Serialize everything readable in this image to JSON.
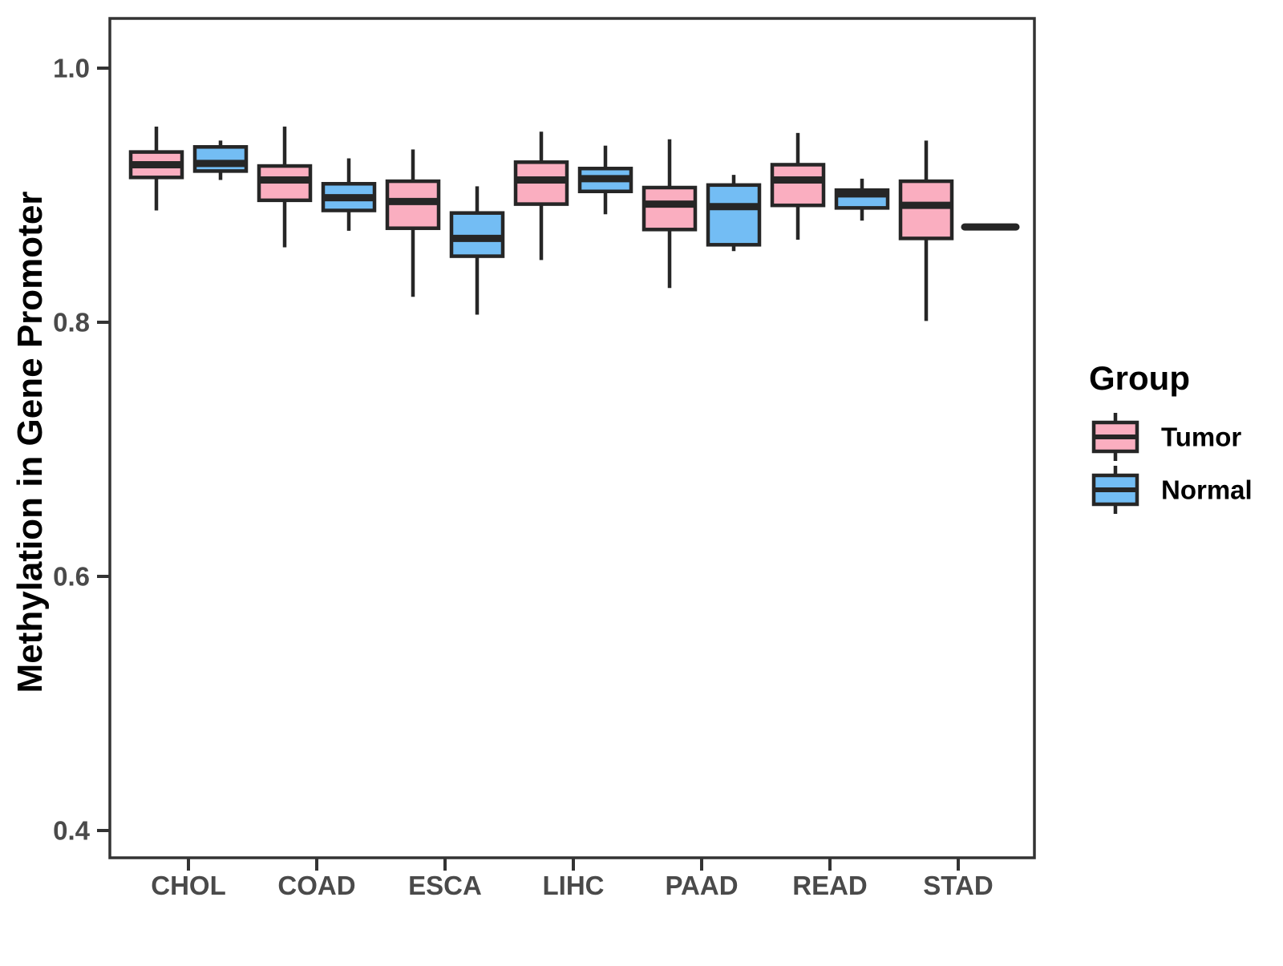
{
  "figure": {
    "background": "#FFFFFF"
  },
  "chart_data": {
    "type": "boxplot",
    "title": "",
    "xlabel": "",
    "ylabel": "Methylation in Gene Promoter",
    "categories": [
      "CHOL",
      "COAD",
      "ESCA",
      "LIHC",
      "PAAD",
      "READ",
      "STAD"
    ],
    "ytick_labels": [
      "1.0",
      "0.8",
      "0.6",
      "0.4"
    ],
    "ytick_values": [
      1.0,
      0.8,
      0.6,
      0.4
    ],
    "ylim": [
      0.379,
      1.039
    ],
    "grid": false,
    "legend": {
      "title": "Group",
      "position": "right",
      "entries": [
        {
          "label": "Tumor",
          "color": "#FAAEC0"
        },
        {
          "label": "Normal",
          "color": "#73BDF4"
        }
      ]
    },
    "style": {
      "box_border": "#262626",
      "panel_border": "#333333",
      "tick_label_color": "#4A4A4A",
      "axis_title_color": "#000000",
      "tumor_fill": "#FAAEC0",
      "normal_fill": "#73BDF4"
    },
    "series": [
      {
        "name": "Tumor",
        "color": "#FAAEC0",
        "boxes": [
          {
            "category": "CHOL",
            "min": 0.888,
            "q1": 0.914,
            "median": 0.924,
            "q3": 0.934,
            "max": 0.954
          },
          {
            "category": "COAD",
            "min": 0.859,
            "q1": 0.896,
            "median": 0.912,
            "q3": 0.923,
            "max": 0.954
          },
          {
            "category": "ESCA",
            "min": 0.82,
            "q1": 0.874,
            "median": 0.895,
            "q3": 0.911,
            "max": 0.936
          },
          {
            "category": "LIHC",
            "min": 0.849,
            "q1": 0.893,
            "median": 0.912,
            "q3": 0.926,
            "max": 0.95
          },
          {
            "category": "PAAD",
            "min": 0.827,
            "q1": 0.873,
            "median": 0.893,
            "q3": 0.906,
            "max": 0.944
          },
          {
            "category": "READ",
            "min": 0.865,
            "q1": 0.892,
            "median": 0.912,
            "q3": 0.924,
            "max": 0.949
          },
          {
            "category": "STAD",
            "min": 0.801,
            "q1": 0.866,
            "median": 0.892,
            "q3": 0.911,
            "max": 0.943
          }
        ]
      },
      {
        "name": "Normal",
        "color": "#73BDF4",
        "boxes": [
          {
            "category": "CHOL",
            "min": 0.912,
            "q1": 0.919,
            "median": 0.925,
            "q3": 0.938,
            "max": 0.943
          },
          {
            "category": "COAD",
            "min": 0.872,
            "q1": 0.888,
            "median": 0.898,
            "q3": 0.909,
            "max": 0.929
          },
          {
            "category": "ESCA",
            "min": 0.806,
            "q1": 0.852,
            "median": 0.866,
            "q3": 0.886,
            "max": 0.907
          },
          {
            "category": "LIHC",
            "min": 0.885,
            "q1": 0.903,
            "median": 0.913,
            "q3": 0.921,
            "max": 0.939
          },
          {
            "category": "PAAD",
            "min": 0.856,
            "q1": 0.861,
            "median": 0.891,
            "q3": 0.908,
            "max": 0.916
          },
          {
            "category": "READ",
            "min": 0.88,
            "q1": 0.89,
            "median": 0.901,
            "q3": 0.904,
            "max": 0.913
          },
          {
            "category": "STAD",
            "min": 0.875,
            "q1": 0.875,
            "median": 0.875,
            "q3": 0.875,
            "max": 0.875
          }
        ]
      }
    ]
  }
}
